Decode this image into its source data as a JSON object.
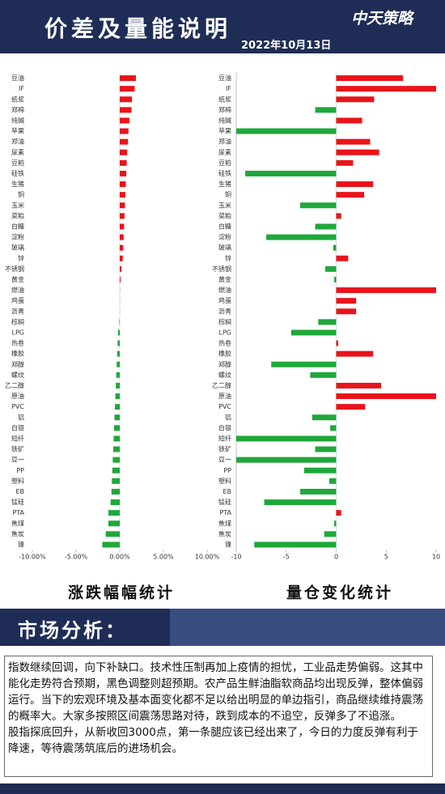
{
  "header": {
    "title": "价差及量能说明",
    "date": "2022年10月13日",
    "logo": "中天策略"
  },
  "analysis": {
    "title": "市场分析：",
    "paragraphs": [
      "指数继续回调，向下补缺口。技术性压制再加上疫情的担忧，工业品走势偏弱。这其中能化走势符合预期，黑色调整则超预期。农产品生鲜油脂软商品均出现反弹，整体偏弱运行。当下的宏观环境及基本面变化都不足以给出明显的单边指引，商品继续维持震荡的概率大。大家多按照区间震荡思路对待，跌到成本的不追空，反弹多了不追涨。",
      "股指探底回升，从新收回3000点，第一条腿应该已经出来了，今日的力度反弹有利于降速，等待震荡筑底后的进场机会。"
    ]
  },
  "chart_data": [
    {
      "type": "hbar",
      "title": "涨跌幅幅统计",
      "categories": [
        "豆油",
        "IF",
        "纸浆",
        "郑棉",
        "纯碱",
        "苹果",
        "郑油",
        "尿素",
        "豆粕",
        "硅铁",
        "生猪",
        "铜",
        "玉米",
        "菜粕",
        "白糖",
        "淀粉",
        "玻璃",
        "锌",
        "不锈钢",
        "黄金",
        "燃油",
        "鸡蛋",
        "沥青",
        "棕榈",
        "LPG",
        "热卷",
        "橡胶",
        "郑醇",
        "螺纹",
        "乙二醇",
        "原油",
        "PVC",
        "铝",
        "白银",
        "短纤",
        "铁矿",
        "豆一",
        "PP",
        "塑料",
        "EB",
        "锰硅",
        "PTA",
        "焦煤",
        "焦炭",
        "镍"
      ],
      "values": [
        1.85,
        1.7,
        1.4,
        1.35,
        1.1,
        1.0,
        0.95,
        0.85,
        0.8,
        0.75,
        0.7,
        0.65,
        0.6,
        0.55,
        0.5,
        0.45,
        0.4,
        0.35,
        0.2,
        0.1,
        0.02,
        0.01,
        0.01,
        -0.05,
        -0.2,
        -0.25,
        -0.3,
        -0.35,
        -0.4,
        -0.45,
        -0.5,
        -0.55,
        -0.6,
        -0.65,
        -0.7,
        -0.75,
        -0.8,
        -0.85,
        -0.9,
        -0.95,
        -1.05,
        -1.3,
        -1.3,
        -1.6,
        -2.0
      ],
      "positive_color": "#e8141a",
      "negative_color": "#1fa83a",
      "xlim": [
        -10,
        10
      ],
      "xticks": [
        {
          "value": -10,
          "label": "-10.00%"
        },
        {
          "value": -5,
          "label": "-5.00%"
        },
        {
          "value": 0,
          "label": "0.00%"
        },
        {
          "value": 5,
          "label": "5.00%"
        },
        {
          "value": 10,
          "label": "10.00%"
        }
      ]
    },
    {
      "type": "hbar",
      "title": "量仓变化统计",
      "categories": [
        "豆油",
        "IF",
        "纸浆",
        "郑棉",
        "纯碱",
        "苹果",
        "郑油",
        "尿素",
        "豆粕",
        "硅铁",
        "生猪",
        "铜",
        "玉米",
        "菜粕",
        "白糖",
        "淀粉",
        "玻璃",
        "锌",
        "不锈钢",
        "黄金",
        "燃油",
        "鸡蛋",
        "沥青",
        "棕榈",
        "LPG",
        "热卷",
        "橡胶",
        "郑醇",
        "螺纹",
        "乙二醇",
        "原油",
        "PVC",
        "铝",
        "白银",
        "短纤",
        "铁矿",
        "豆一",
        "PP",
        "塑料",
        "EB",
        "锰硅",
        "PTA",
        "焦煤",
        "焦炭",
        "镍"
      ],
      "values": [
        6.7,
        10,
        3.8,
        -2.1,
        2.6,
        -10,
        3.4,
        4.3,
        1.7,
        -9.1,
        3.7,
        2.8,
        -3.6,
        0.5,
        -2.1,
        -7.0,
        -0.3,
        1.2,
        -1.1,
        -0.2,
        10,
        2.0,
        2.0,
        -1.8,
        -4.5,
        0.2,
        3.7,
        -6.5,
        -2.6,
        4.5,
        10,
        2.9,
        -2.4,
        -0.6,
        -10,
        -2.1,
        -10,
        -3.2,
        -0.7,
        -3.6,
        -7.2,
        0.5,
        -0.2,
        -1.2,
        -8.2
      ],
      "positive_color": "#e8141a",
      "negative_color": "#1fa83a",
      "xlim": [
        -10,
        10
      ],
      "xticks": [
        -10,
        -5,
        0,
        5,
        10
      ]
    }
  ]
}
